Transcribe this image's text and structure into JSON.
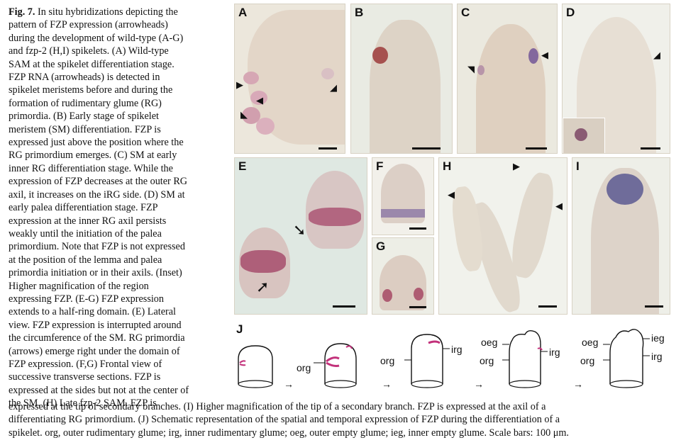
{
  "caption": {
    "fig_label": "Fig. 7.",
    "lines": [
      "In situ hybridizations depicting the",
      "pattern of FZP expression (arrowheads)",
      "during the development of wild-type (A-G)",
      "and fzp-2 (H,I) spikelets. (A) Wild-type",
      "SAM at the spikelet differentiation stage.",
      "FZP RNA (arrowheads) is detected in",
      "spikelet meristems before and during the",
      "formation of rudimentary glume (RG)",
      "primordia. (B) Early stage of spikelet",
      "meristem (SM) differentiation. FZP is",
      "expressed just above the position where the",
      "RG primordium emerges. (C) SM at early",
      "inner RG differentiation stage. While the",
      "expression of FZP decreases at the outer RG",
      "axil, it increases on the iRG side. (D) SM at",
      "early palea differentiation stage. FZP",
      "expression at the inner RG axil persists",
      "weakly until the initiation of the palea",
      "primordium. Note that FZP is not expressed",
      "at the position of the lemma and palea",
      "primordia initiation or in their axils. (Inset)",
      "Higher magnification of the region",
      "expressing FZP. (E-G) FZP expression",
      "extends to a half-ring domain. (E) Lateral",
      "view. FZP expression is interrupted around",
      "the circumference of the SM. RG primordia",
      "(arrows) emerge right under the domain of",
      "FZP expression. (F,G) Frontal view of",
      "successive transverse sections. FZP is",
      "expressed at the sides but not at the center of",
      "the SM. (H) Late fzp-2 SAM. FZP is"
    ],
    "bottom_lines": [
      "expressed at the tip of secondary branches. (I) Higher magnification of the tip of a secondary branch. FZP is expressed at the axil of a",
      "differentiating RG primordium. (J) Schematic representation of the spatial and temporal expression of FZP during the differentiation of a",
      "spikelet. org, outer rudimentary glume; irg, inner rudimentary glume; oeg, outer empty glume; ieg, inner empty glume. Scale bars: 100 μm."
    ]
  },
  "panels": {
    "A": "A",
    "B": "B",
    "C": "C",
    "D": "D",
    "E": "E",
    "F": "F",
    "G": "G",
    "H": "H",
    "I": "I",
    "J": "J"
  },
  "schema_labels": {
    "org": "org",
    "irg": "irg",
    "oeg": "oeg",
    "ieg": "ieg"
  },
  "colors": {
    "expression": "#c2317a",
    "tissue": "#e7dccf",
    "background_stain": "#eef0ea"
  }
}
